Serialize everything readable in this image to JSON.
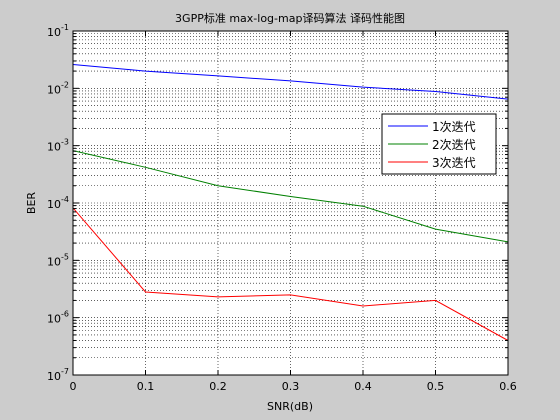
{
  "chart_data": {
    "type": "line",
    "title": "3GPP标准 max-log-map译码算法 译码性能图",
    "xlabel": "SNR(dB)",
    "ylabel": "BER",
    "xlim": [
      0,
      0.6
    ],
    "ylim": [
      1e-07,
      0.1
    ],
    "yscale": "log",
    "grid": "dotted",
    "legend_position": "right",
    "x_ticks": [
      "0",
      "0.1",
      "0.2",
      "0.3",
      "0.4",
      "0.5",
      "0.6"
    ],
    "y_ticks": [
      {
        "base": "10",
        "exp": "-1"
      },
      {
        "base": "10",
        "exp": "-2"
      },
      {
        "base": "10",
        "exp": "-3"
      },
      {
        "base": "10",
        "exp": "-4"
      },
      {
        "base": "10",
        "exp": "-5"
      },
      {
        "base": "10",
        "exp": "-6"
      },
      {
        "base": "10",
        "exp": "-7"
      }
    ],
    "x": [
      0,
      0.1,
      0.2,
      0.3,
      0.4,
      0.5,
      0.6
    ],
    "series": [
      {
        "name": "1次迭代",
        "color": "#0000ff",
        "values": [
          0.026,
          0.02,
          0.0165,
          0.0135,
          0.0105,
          0.0088,
          0.0065
        ]
      },
      {
        "name": "2次迭代",
        "color": "#008000",
        "values": [
          0.00082,
          0.00042,
          0.0002,
          0.00013,
          8.8e-05,
          3.5e-05,
          2.1e-05
        ]
      },
      {
        "name": "3次迭代",
        "color": "#ff0000",
        "values": [
          8.2e-05,
          2.8e-06,
          2.3e-06,
          2.5e-06,
          1.6e-06,
          2e-06,
          4e-07
        ]
      }
    ]
  }
}
